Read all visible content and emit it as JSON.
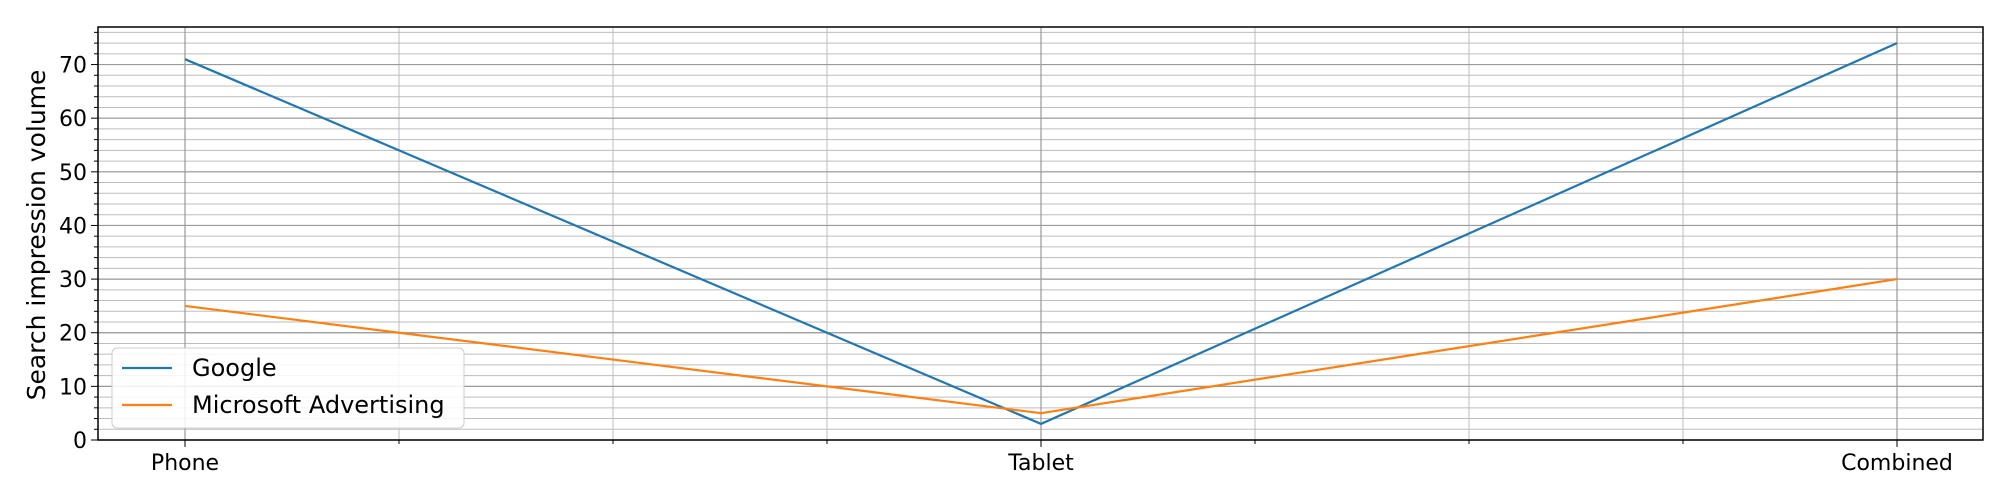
{
  "chart_data": {
    "type": "line",
    "categories": [
      "Phone",
      "Tablet",
      "Combined"
    ],
    "series": [
      {
        "name": "Google",
        "values": [
          71,
          3,
          74
        ],
        "color": "#1f77b4"
      },
      {
        "name": "Microsoft Advertising",
        "values": [
          25,
          5,
          30
        ],
        "color": "#ff7f0e"
      }
    ],
    "title": "",
    "xlabel": "",
    "ylabel": "Search impression volume",
    "ylim": [
      0,
      77
    ],
    "yticks": [
      0,
      10,
      20,
      30,
      40,
      50,
      60,
      70
    ],
    "grid": true,
    "minor_grid": true,
    "legend_position": "lower-left"
  }
}
